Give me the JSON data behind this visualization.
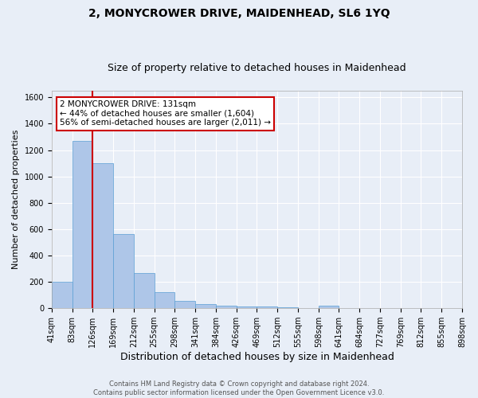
{
  "title": "2, MONYCROWER DRIVE, MAIDENHEAD, SL6 1YQ",
  "subtitle": "Size of property relative to detached houses in Maidenhead",
  "xlabel": "Distribution of detached houses by size in Maidenhead",
  "ylabel": "Number of detached properties",
  "bar_heights": [
    200,
    1270,
    1100,
    560,
    265,
    120,
    55,
    33,
    22,
    15,
    13,
    10,
    0,
    18,
    0,
    0,
    0,
    0,
    0,
    0
  ],
  "bar_labels": [
    "41sqm",
    "83sqm",
    "126sqm",
    "169sqm",
    "212sqm",
    "255sqm",
    "298sqm",
    "341sqm",
    "384sqm",
    "426sqm",
    "469sqm",
    "512sqm",
    "555sqm",
    "598sqm",
    "641sqm",
    "684sqm",
    "727sqm",
    "769sqm",
    "812sqm",
    "855sqm",
    "898sqm"
  ],
  "bar_color": "#aec6e8",
  "bar_edge_color": "#5a9fd4",
  "bg_color": "#e8eef7",
  "grid_color": "#ffffff",
  "ylim": [
    0,
    1650
  ],
  "yticks": [
    0,
    200,
    400,
    600,
    800,
    1000,
    1200,
    1400,
    1600
  ],
  "redline_x": 2.0,
  "annotation_text": "2 MONYCROWER DRIVE: 131sqm\n← 44% of detached houses are smaller (1,604)\n56% of semi-detached houses are larger (2,011) →",
  "annotation_box_color": "#ffffff",
  "annotation_border_color": "#cc0000",
  "footer_text": "Contains HM Land Registry data © Crown copyright and database right 2024.\nContains public sector information licensed under the Open Government Licence v3.0.",
  "title_fontsize": 10,
  "subtitle_fontsize": 9,
  "xlabel_fontsize": 9,
  "ylabel_fontsize": 8,
  "tick_fontsize": 7,
  "annotation_fontsize": 7.5,
  "footer_fontsize": 6
}
